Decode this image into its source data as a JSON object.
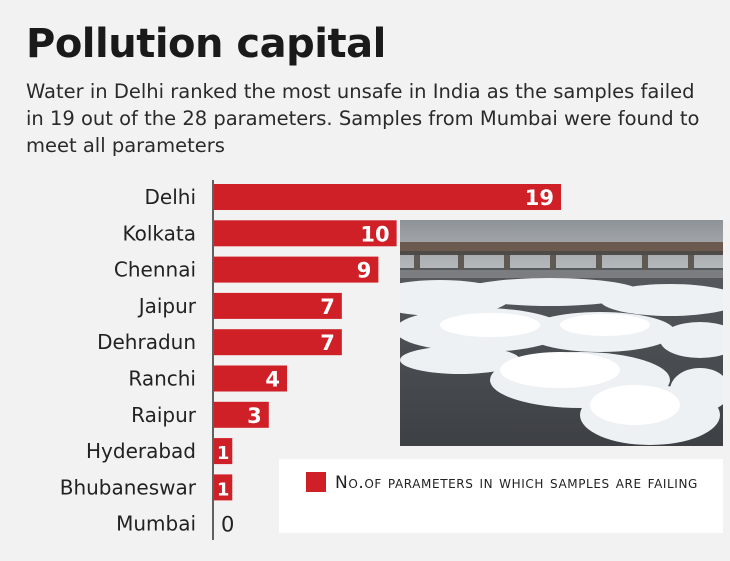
{
  "header": {
    "title": "Pollution capital",
    "subtitle": "Water in Delhi ranked the most unsafe in India as the samples failed in 19 out of the 28 parameters. Samples from Mumbai were found to meet all parameters"
  },
  "legend": {
    "label": "No.of parameters in which samples are failing",
    "swatch_color": "#cf2027"
  },
  "chart_data": {
    "type": "bar",
    "orientation": "horizontal",
    "categories": [
      "Delhi",
      "Kolkata",
      "Chennai",
      "Jaipur",
      "Dehradun",
      "Ranchi",
      "Raipur",
      "Hyderabad",
      "Bhubaneswar",
      "Mumbai"
    ],
    "values": [
      19,
      10,
      9,
      7,
      7,
      4,
      3,
      1,
      1,
      0
    ],
    "series": [
      {
        "name": "No.of parameters in which samples are failing",
        "values": [
          19,
          10,
          9,
          7,
          7,
          4,
          3,
          1,
          1,
          0
        ]
      }
    ],
    "title": "Pollution capital",
    "xlabel": "",
    "ylabel": "",
    "xlim": [
      0,
      19
    ],
    "bar_color": "#cf2027",
    "data_labels": true,
    "grid": false,
    "legend_position": "bottom-right"
  }
}
